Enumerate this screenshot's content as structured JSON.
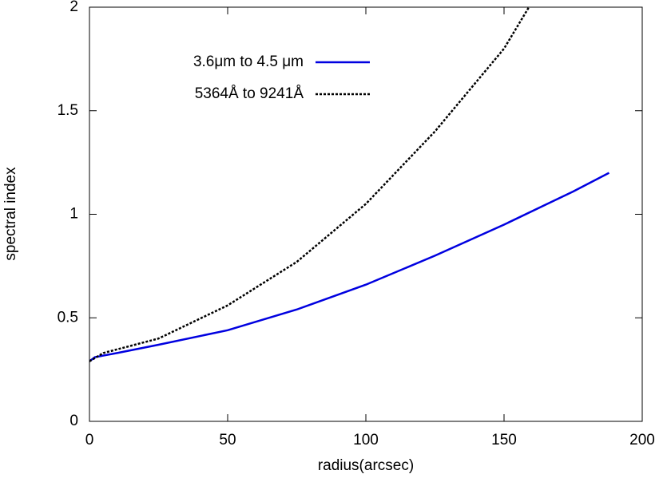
{
  "chart_data": {
    "type": "line",
    "x_label": "radius(arcsec)",
    "y_label": "spectral index",
    "xlim": [
      0,
      200
    ],
    "xticks": [
      0,
      50,
      100,
      150,
      200
    ],
    "ylim": [
      0,
      2
    ],
    "yticks": [
      0,
      0.5,
      1,
      1.5,
      2
    ],
    "legend": "top-left",
    "series": [
      {
        "name": "3.6μm to 4.5 μm",
        "color": "#0000e0",
        "dash": false,
        "x": [
          0,
          2,
          10,
          25,
          50,
          75,
          100,
          125,
          150,
          175,
          188
        ],
        "values": [
          0.29,
          0.31,
          0.33,
          0.37,
          0.44,
          0.54,
          0.66,
          0.8,
          0.95,
          1.11,
          1.2
        ]
      },
      {
        "name": "5364Å to 9241Å",
        "color": "#000000",
        "dash": true,
        "x": [
          0,
          5,
          25,
          50,
          75,
          100,
          125,
          150,
          159
        ],
        "values": [
          0.29,
          0.33,
          0.4,
          0.56,
          0.77,
          1.05,
          1.4,
          1.8,
          2.0
        ]
      }
    ]
  }
}
